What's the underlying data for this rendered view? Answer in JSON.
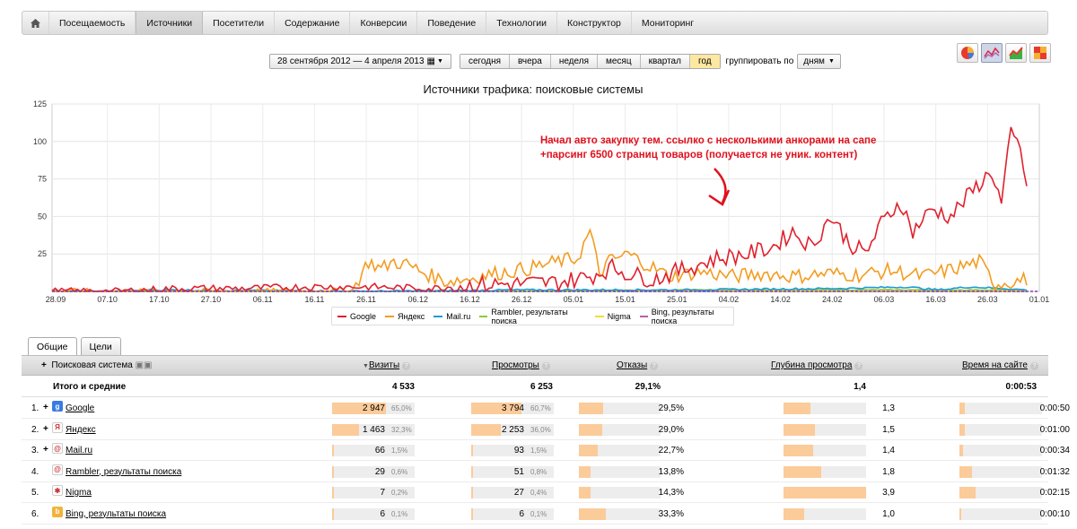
{
  "nav": {
    "home_icon": "home-icon",
    "items": [
      "Посещаемость",
      "Источники",
      "Посетители",
      "Содержание",
      "Конверсии",
      "Поведение",
      "Технологии",
      "Конструктор",
      "Мониторинг"
    ],
    "active": "Источники"
  },
  "toolbar": {
    "date_range": "28 сентября 2012 — 4 апреля 2013",
    "periods": [
      "сегодня",
      "вчера",
      "неделя",
      "месяц",
      "квартал",
      "год"
    ],
    "selected_period": "год",
    "group_label": "группировать по",
    "group_value": "дням"
  },
  "chart_icons": [
    "pie-chart-icon",
    "area-chart-icon",
    "line-chart-icon",
    "tile-chart-icon"
  ],
  "chart_data": {
    "type": "line",
    "title": "Источники трафика: поисковые системы",
    "ylim": [
      0,
      125
    ],
    "yticks": [
      25,
      50,
      75,
      100,
      125
    ],
    "xticks": [
      "28.09",
      "07.10",
      "17.10",
      "27.10",
      "06.11",
      "16.11",
      "26.11",
      "06.12",
      "16.12",
      "26.12",
      "05.01",
      "15.01",
      "25.01",
      "04.02",
      "14.02",
      "24.02",
      "06.03",
      "16.03",
      "26.03",
      "01.01"
    ],
    "grid": true,
    "legend_position": "bottom",
    "annotation": [
      "Начал авто закупку тем. ссылко с несколькими анкорами на сапе",
      "+парсинг 6500 страниц товаров (получается не уник. контент)"
    ],
    "series": [
      {
        "name": "Google",
        "color": "#e0212d",
        "keyframes": [
          [
            0,
            0
          ],
          [
            20,
            0
          ],
          [
            40,
            2
          ],
          [
            60,
            2
          ],
          [
            80,
            3
          ],
          [
            100,
            3
          ],
          [
            120,
            2
          ],
          [
            130,
            4
          ],
          [
            145,
            5
          ],
          [
            160,
            6
          ],
          [
            170,
            10
          ],
          [
            177,
            16
          ],
          [
            182,
            12
          ],
          [
            190,
            8
          ],
          [
            200,
            15
          ],
          [
            210,
            22
          ],
          [
            220,
            25
          ],
          [
            228,
            30
          ],
          [
            234,
            40
          ],
          [
            240,
            30
          ],
          [
            246,
            50
          ],
          [
            252,
            32
          ],
          [
            257,
            25
          ],
          [
            262,
            45
          ],
          [
            268,
            60
          ],
          [
            272,
            40
          ],
          [
            278,
            55
          ],
          [
            284,
            50
          ],
          [
            288,
            60
          ],
          [
            293,
            72
          ],
          [
            297,
            80
          ],
          [
            300,
            58
          ],
          [
            303,
            105
          ],
          [
            306,
            95
          ],
          [
            308,
            70
          ]
        ],
        "noise": 6
      },
      {
        "name": "Яндекс",
        "color": "#f39c20",
        "keyframes": [
          [
            0,
            0
          ],
          [
            80,
            0
          ],
          [
            95,
            1
          ],
          [
            100,
            20
          ],
          [
            104,
            15
          ],
          [
            108,
            20
          ],
          [
            112,
            18
          ],
          [
            118,
            12
          ],
          [
            124,
            7
          ],
          [
            130,
            8
          ],
          [
            140,
            12
          ],
          [
            150,
            15
          ],
          [
            160,
            20
          ],
          [
            166,
            22
          ],
          [
            170,
            40
          ],
          [
            173,
            12
          ],
          [
            176,
            20
          ],
          [
            182,
            25
          ],
          [
            188,
            18
          ],
          [
            195,
            10
          ],
          [
            205,
            13
          ],
          [
            215,
            10
          ],
          [
            225,
            12
          ],
          [
            235,
            10
          ],
          [
            245,
            12
          ],
          [
            255,
            11
          ],
          [
            265,
            14
          ],
          [
            275,
            10
          ],
          [
            285,
            15
          ],
          [
            293,
            20
          ],
          [
            298,
            5
          ],
          [
            308,
            8
          ]
        ],
        "noise": 5
      },
      {
        "name": "Mail.ru",
        "color": "#1b9ad8",
        "keyframes": [
          [
            0,
            0
          ],
          [
            20,
            0
          ],
          [
            30,
            1
          ],
          [
            100,
            0
          ],
          [
            150,
            1
          ],
          [
            200,
            1
          ],
          [
            250,
            2
          ],
          [
            270,
            3
          ],
          [
            280,
            1
          ],
          [
            290,
            3
          ],
          [
            300,
            2
          ],
          [
            308,
            1
          ]
        ],
        "noise": 1.5
      },
      {
        "name": "Rambler, результаты поиска",
        "color": "#8fc93a",
        "keyframes": [
          [
            0,
            0
          ],
          [
            150,
            0
          ],
          [
            200,
            1
          ],
          [
            250,
            1
          ],
          [
            308,
            1
          ]
        ],
        "noise": 0.8
      },
      {
        "name": "Nigma",
        "color": "#f1dd38",
        "keyframes": [
          [
            0,
            0
          ],
          [
            150,
            0
          ],
          [
            200,
            0.5
          ],
          [
            250,
            0.5
          ],
          [
            308,
            0.5
          ]
        ],
        "noise": 0.6
      },
      {
        "name": "Bing, результаты поиска",
        "color": "#b25fb0",
        "keyframes": [
          [
            0,
            0
          ],
          [
            308,
            0
          ]
        ],
        "noise": 0.3
      }
    ]
  },
  "tabs": [
    "Общие",
    "Цели"
  ],
  "table": {
    "headers": {
      "source": "Поисковая система",
      "visits": "Визиты",
      "views": "Просмотры",
      "bounces": "Отказы",
      "depth": "Глубина просмотра",
      "time": "Время на сайте"
    },
    "totals": {
      "label": "Итого и средние",
      "visits": "4 533",
      "views": "6 253",
      "bounces": "29,1%",
      "depth": "1,4",
      "time": "0:00:53"
    },
    "rows": [
      {
        "idx": "1.",
        "name": "Google",
        "icon": "google-icon",
        "icon_color": "#3a7be3",
        "icon_char": "g",
        "visits": "2 947",
        "visits_pct": "65,0%",
        "visits_frac": 0.65,
        "views": "3 794",
        "views_pct": "60,7%",
        "views_frac": 0.607,
        "bounces": "29,5%",
        "bounces_frac": 0.295,
        "depth": "1,3",
        "depth_frac": 0.33,
        "time": "0:00:50",
        "time_frac": 0.06
      },
      {
        "idx": "2.",
        "name": "Яндекс",
        "icon": "yandex-icon",
        "icon_color": "#ffffff",
        "icon_char": "Я",
        "visits": "1 463",
        "visits_pct": "32,3%",
        "visits_frac": 0.323,
        "views": "2 253",
        "views_pct": "36,0%",
        "views_frac": 0.36,
        "bounces": "29,0%",
        "bounces_frac": 0.29,
        "depth": "1,5",
        "depth_frac": 0.38,
        "time": "0:01:00",
        "time_frac": 0.07
      },
      {
        "idx": "3.",
        "name": "Mail.ru",
        "icon": "mailru-icon",
        "icon_color": "#ffffff",
        "icon_char": "@",
        "visits": "66",
        "visits_pct": "1,5%",
        "visits_frac": 0.015,
        "views": "93",
        "views_pct": "1,5%",
        "views_frac": 0.015,
        "bounces": "22,7%",
        "bounces_frac": 0.227,
        "depth": "1,4",
        "depth_frac": 0.36,
        "time": "0:00:34",
        "time_frac": 0.04
      },
      {
        "idx": "4.",
        "name": "Rambler, результаты поиска",
        "icon": "rambler-icon",
        "icon_color": "#ffffff",
        "icon_char": "@",
        "visits": "29",
        "visits_pct": "0,6%",
        "visits_frac": 0.006,
        "views": "51",
        "views_pct": "0,8%",
        "views_frac": 0.008,
        "bounces": "13,8%",
        "bounces_frac": 0.138,
        "depth": "1,8",
        "depth_frac": 0.46,
        "time": "0:01:32",
        "time_frac": 0.15
      },
      {
        "idx": "5.",
        "name": "Nigma",
        "icon": "nigma-icon",
        "icon_color": "#ffffff",
        "icon_char": "✱",
        "visits": "7",
        "visits_pct": "0,2%",
        "visits_frac": 0.002,
        "views": "27",
        "views_pct": "0,4%",
        "views_frac": 0.004,
        "bounces": "14,3%",
        "bounces_frac": 0.143,
        "depth": "3,9",
        "depth_frac": 1.0,
        "time": "0:02:15",
        "time_frac": 0.2
      },
      {
        "idx": "6.",
        "name": "Bing, результаты поиска",
        "icon": "bing-icon",
        "icon_color": "#f2b33a",
        "icon_char": "b",
        "visits": "6",
        "visits_pct": "0,1%",
        "visits_frac": 0.001,
        "views": "6",
        "views_pct": "0,1%",
        "views_frac": 0.001,
        "bounces": "33,3%",
        "bounces_frac": 0.333,
        "depth": "1,0",
        "depth_frac": 0.25,
        "time": "0:00:10",
        "time_frac": 0.02
      }
    ]
  }
}
